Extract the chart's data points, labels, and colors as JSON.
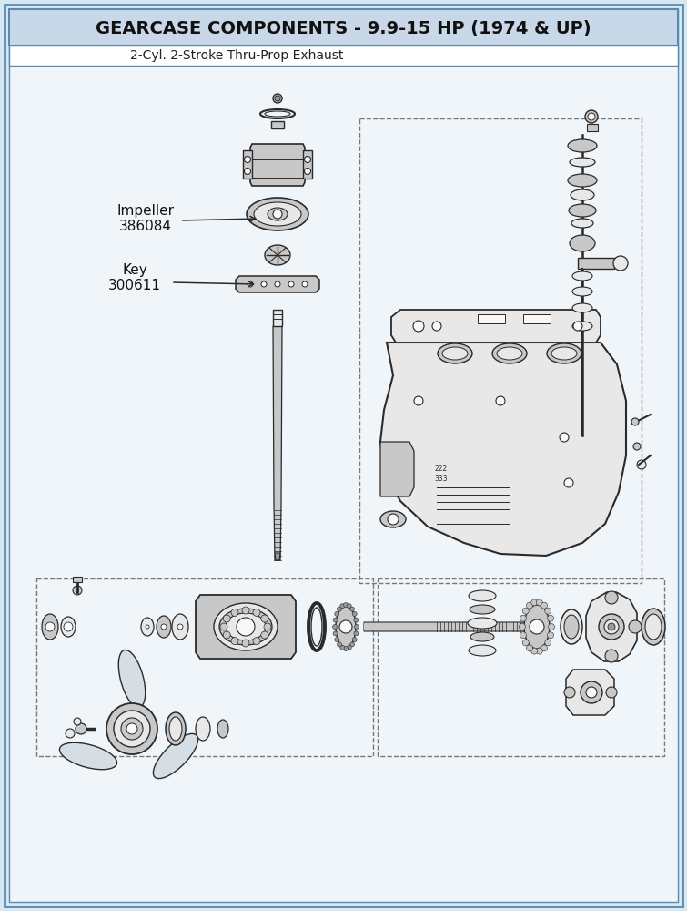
{
  "title": "GEARCASE COMPONENTS - 9.9-15 HP (1974 & UP)",
  "subtitle": "2-Cyl. 2-Stroke Thru-Prop Exhaust",
  "title_bg_color": "#c8d8e8",
  "border_color": "#5a8ab0",
  "outer_bg_color": "#d8e8f2",
  "inner_bg_color": "#f0f5fa",
  "title_fontsize": 14,
  "subtitle_fontsize": 10,
  "fig_width": 7.55,
  "fig_height": 10.0,
  "line_color": "#2a2a2a",
  "fill_light": "#e8e8e8",
  "fill_med": "#c8c8c8",
  "fill_dark": "#999999",
  "fill_white": "#f8f8f8"
}
